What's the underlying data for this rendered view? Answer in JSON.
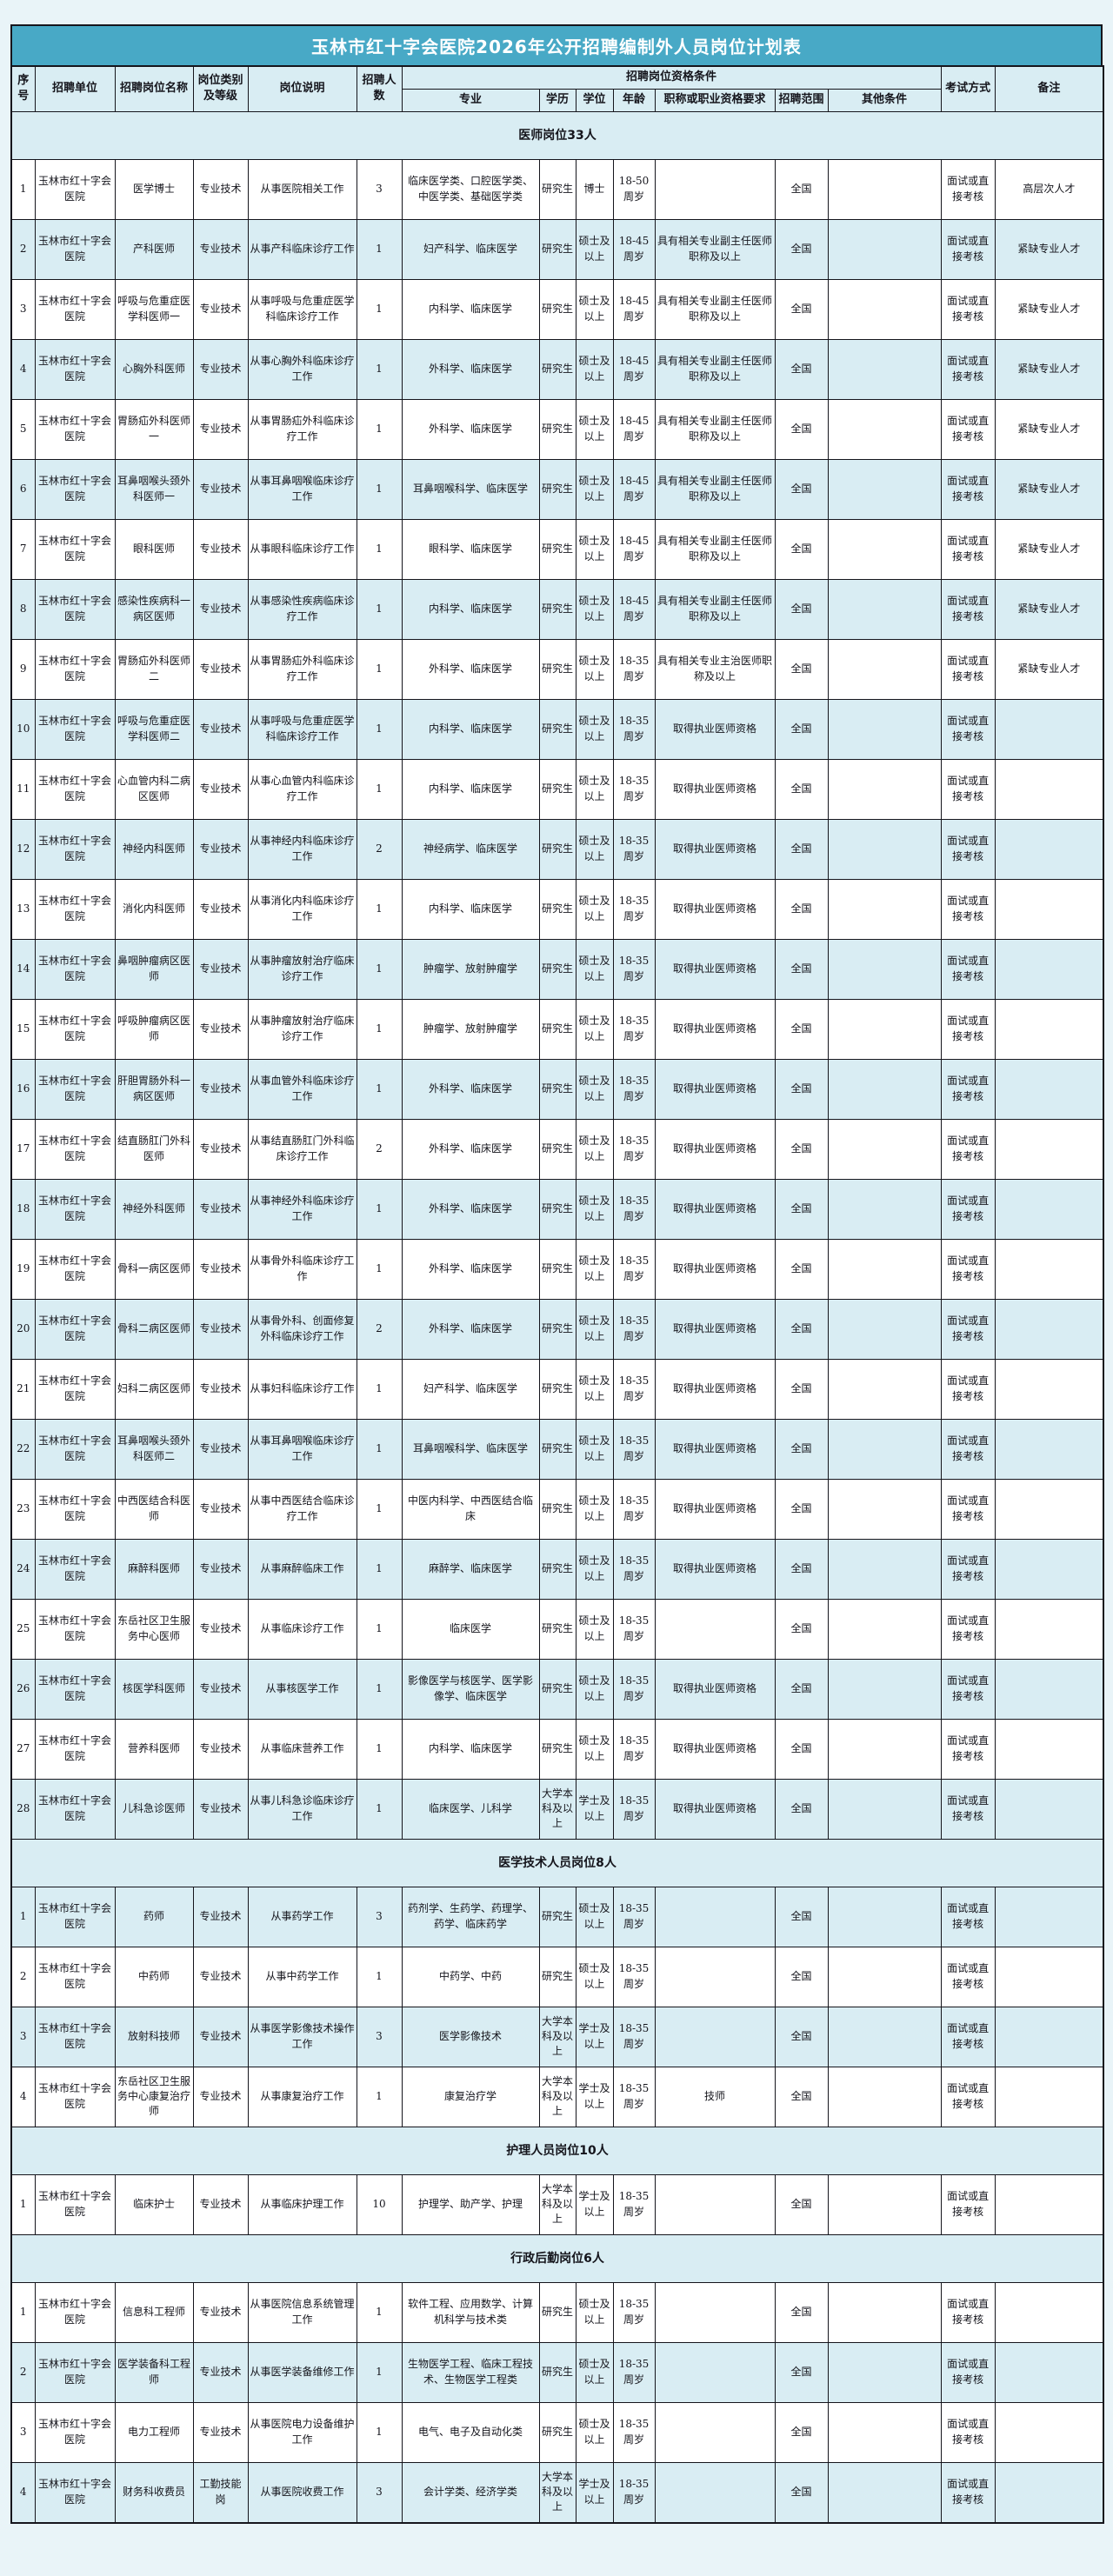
{
  "colors": {
    "title_bg": "#48a9c6",
    "title_text": "#ffffff",
    "band_blue": "#d9edf3",
    "border": "#15151c"
  },
  "title": "玉林市红十字会医院2026年公开招聘编制外人员岗位计划表",
  "header": {
    "no": "序号",
    "unit": "招聘单位",
    "post": "招聘岗位名称",
    "category": "岗位类别及等级",
    "desc": "岗位说明",
    "count": "招聘人数",
    "qual": "招聘岗位资格条件",
    "major": "专业",
    "edu": "学历",
    "degree": "学位",
    "age": "年龄",
    "title_req": "职称或职业资格要求",
    "scope": "招聘范围",
    "other": "其他条件",
    "exam": "考试方式",
    "note": "备注"
  },
  "sections": [
    {
      "heading": "医师岗位33人",
      "zebra_offset": 0,
      "rows": [
        {
          "no": "1",
          "unit": "玉林市红十字会医院",
          "post": "医学博士",
          "category": "专业技术",
          "desc": "从事医院相关工作",
          "count": "3",
          "major": "临床医学类、口腔医学类、中医学类、基础医学类",
          "edu": "研究生",
          "degree": "博士",
          "age": "18-50周岁",
          "title_req": "",
          "scope": "全国",
          "other": "",
          "exam": "面试或直接考核",
          "note": "高层次人才"
        },
        {
          "no": "2",
          "unit": "玉林市红十字会医院",
          "post": "产科医师",
          "category": "专业技术",
          "desc": "从事产科临床诊疗工作",
          "count": "1",
          "major": "妇产科学、临床医学",
          "edu": "研究生",
          "degree": "硕士及以上",
          "age": "18-45周岁",
          "title_req": "具有相关专业副主任医师职称及以上",
          "scope": "全国",
          "other": "",
          "exam": "面试或直接考核",
          "note": "紧缺专业人才"
        },
        {
          "no": "3",
          "unit": "玉林市红十字会医院",
          "post": "呼吸与危重症医学科医师一",
          "category": "专业技术",
          "desc": "从事呼吸与危重症医学科临床诊疗工作",
          "count": "1",
          "major": "内科学、临床医学",
          "edu": "研究生",
          "degree": "硕士及以上",
          "age": "18-45周岁",
          "title_req": "具有相关专业副主任医师职称及以上",
          "scope": "全国",
          "other": "",
          "exam": "面试或直接考核",
          "note": "紧缺专业人才"
        },
        {
          "no": "4",
          "unit": "玉林市红十字会医院",
          "post": "心胸外科医师",
          "category": "专业技术",
          "desc": "从事心胸外科临床诊疗工作",
          "count": "1",
          "major": "外科学、临床医学",
          "edu": "研究生",
          "degree": "硕士及以上",
          "age": "18-45周岁",
          "title_req": "具有相关专业副主任医师职称及以上",
          "scope": "全国",
          "other": "",
          "exam": "面试或直接考核",
          "note": "紧缺专业人才"
        },
        {
          "no": "5",
          "unit": "玉林市红十字会医院",
          "post": "胃肠疝外科医师一",
          "category": "专业技术",
          "desc": "从事胃肠疝外科临床诊疗工作",
          "count": "1",
          "major": "外科学、临床医学",
          "edu": "研究生",
          "degree": "硕士及以上",
          "age": "18-45周岁",
          "title_req": "具有相关专业副主任医师职称及以上",
          "scope": "全国",
          "other": "",
          "exam": "面试或直接考核",
          "note": "紧缺专业人才"
        },
        {
          "no": "6",
          "unit": "玉林市红十字会医院",
          "post": "耳鼻咽喉头颈外科医师一",
          "category": "专业技术",
          "desc": "从事耳鼻咽喉临床诊疗工作",
          "count": "1",
          "major": "耳鼻咽喉科学、临床医学",
          "edu": "研究生",
          "degree": "硕士及以上",
          "age": "18-45周岁",
          "title_req": "具有相关专业副主任医师职称及以上",
          "scope": "全国",
          "other": "",
          "exam": "面试或直接考核",
          "note": "紧缺专业人才"
        },
        {
          "no": "7",
          "unit": "玉林市红十字会医院",
          "post": "眼科医师",
          "category": "专业技术",
          "desc": "从事眼科临床诊疗工作",
          "count": "1",
          "major": "眼科学、临床医学",
          "edu": "研究生",
          "degree": "硕士及以上",
          "age": "18-45周岁",
          "title_req": "具有相关专业副主任医师职称及以上",
          "scope": "全国",
          "other": "",
          "exam": "面试或直接考核",
          "note": "紧缺专业人才"
        },
        {
          "no": "8",
          "unit": "玉林市红十字会医院",
          "post": "感染性疾病科一病区医师",
          "category": "专业技术",
          "desc": "从事感染性疾病临床诊疗工作",
          "count": "1",
          "major": "内科学、临床医学",
          "edu": "研究生",
          "degree": "硕士及以上",
          "age": "18-45周岁",
          "title_req": "具有相关专业副主任医师职称及以上",
          "scope": "全国",
          "other": "",
          "exam": "面试或直接考核",
          "note": "紧缺专业人才"
        },
        {
          "no": "9",
          "unit": "玉林市红十字会医院",
          "post": "胃肠疝外科医师二",
          "category": "专业技术",
          "desc": "从事胃肠疝外科临床诊疗工作",
          "count": "1",
          "major": "外科学、临床医学",
          "edu": "研究生",
          "degree": "硕士及以上",
          "age": "18-35周岁",
          "title_req": "具有相关专业主治医师职称及以上",
          "scope": "全国",
          "other": "",
          "exam": "面试或直接考核",
          "note": "紧缺专业人才"
        },
        {
          "no": "10",
          "unit": "玉林市红十字会医院",
          "post": "呼吸与危重症医学科医师二",
          "category": "专业技术",
          "desc": "从事呼吸与危重症医学科临床诊疗工作",
          "count": "1",
          "major": "内科学、临床医学",
          "edu": "研究生",
          "degree": "硕士及以上",
          "age": "18-35周岁",
          "title_req": "取得执业医师资格",
          "scope": "全国",
          "other": "",
          "exam": "面试或直接考核",
          "note": ""
        },
        {
          "no": "11",
          "unit": "玉林市红十字会医院",
          "post": "心血管内科二病区医师",
          "category": "专业技术",
          "desc": "从事心血管内科临床诊疗工作",
          "count": "1",
          "major": "内科学、临床医学",
          "edu": "研究生",
          "degree": "硕士及以上",
          "age": "18-35周岁",
          "title_req": "取得执业医师资格",
          "scope": "全国",
          "other": "",
          "exam": "面试或直接考核",
          "note": ""
        },
        {
          "no": "12",
          "unit": "玉林市红十字会医院",
          "post": "神经内科医师",
          "category": "专业技术",
          "desc": "从事神经内科临床诊疗工作",
          "count": "2",
          "major": "神经病学、临床医学",
          "edu": "研究生",
          "degree": "硕士及以上",
          "age": "18-35周岁",
          "title_req": "取得执业医师资格",
          "scope": "全国",
          "other": "",
          "exam": "面试或直接考核",
          "note": ""
        },
        {
          "no": "13",
          "unit": "玉林市红十字会医院",
          "post": "消化内科医师",
          "category": "专业技术",
          "desc": "从事消化内科临床诊疗工作",
          "count": "1",
          "major": "内科学、临床医学",
          "edu": "研究生",
          "degree": "硕士及以上",
          "age": "18-35周岁",
          "title_req": "取得执业医师资格",
          "scope": "全国",
          "other": "",
          "exam": "面试或直接考核",
          "note": ""
        },
        {
          "no": "14",
          "unit": "玉林市红十字会医院",
          "post": "鼻咽肿瘤病区医师",
          "category": "专业技术",
          "desc": "从事肿瘤放射治疗临床诊疗工作",
          "count": "1",
          "major": "肿瘤学、放射肿瘤学",
          "edu": "研究生",
          "degree": "硕士及以上",
          "age": "18-35周岁",
          "title_req": "取得执业医师资格",
          "scope": "全国",
          "other": "",
          "exam": "面试或直接考核",
          "note": ""
        },
        {
          "no": "15",
          "unit": "玉林市红十字会医院",
          "post": "呼吸肿瘤病区医师",
          "category": "专业技术",
          "desc": "从事肿瘤放射治疗临床诊疗工作",
          "count": "1",
          "major": "肿瘤学、放射肿瘤学",
          "edu": "研究生",
          "degree": "硕士及以上",
          "age": "18-35周岁",
          "title_req": "取得执业医师资格",
          "scope": "全国",
          "other": "",
          "exam": "面试或直接考核",
          "note": ""
        },
        {
          "no": "16",
          "unit": "玉林市红十字会医院",
          "post": "肝胆胃肠外科一病区医师",
          "category": "专业技术",
          "desc": "从事血管外科临床诊疗工作",
          "count": "1",
          "major": "外科学、临床医学",
          "edu": "研究生",
          "degree": "硕士及以上",
          "age": "18-35周岁",
          "title_req": "取得执业医师资格",
          "scope": "全国",
          "other": "",
          "exam": "面试或直接考核",
          "note": ""
        },
        {
          "no": "17",
          "unit": "玉林市红十字会医院",
          "post": "结直肠肛门外科医师",
          "category": "专业技术",
          "desc": "从事结直肠肛门外科临床诊疗工作",
          "count": "2",
          "major": "外科学、临床医学",
          "edu": "研究生",
          "degree": "硕士及以上",
          "age": "18-35周岁",
          "title_req": "取得执业医师资格",
          "scope": "全国",
          "other": "",
          "exam": "面试或直接考核",
          "note": ""
        },
        {
          "no": "18",
          "unit": "玉林市红十字会医院",
          "post": "神经外科医师",
          "category": "专业技术",
          "desc": "从事神经外科临床诊疗工作",
          "count": "1",
          "major": "外科学、临床医学",
          "edu": "研究生",
          "degree": "硕士及以上",
          "age": "18-35周岁",
          "title_req": "取得执业医师资格",
          "scope": "全国",
          "other": "",
          "exam": "面试或直接考核",
          "note": ""
        },
        {
          "no": "19",
          "unit": "玉林市红十字会医院",
          "post": "骨科一病区医师",
          "category": "专业技术",
          "desc": "从事骨外科临床诊疗工作",
          "count": "1",
          "major": "外科学、临床医学",
          "edu": "研究生",
          "degree": "硕士及以上",
          "age": "18-35周岁",
          "title_req": "取得执业医师资格",
          "scope": "全国",
          "other": "",
          "exam": "面试或直接考核",
          "note": ""
        },
        {
          "no": "20",
          "unit": "玉林市红十字会医院",
          "post": "骨科二病区医师",
          "category": "专业技术",
          "desc": "从事骨外科、创面修复外科临床诊疗工作",
          "count": "2",
          "major": "外科学、临床医学",
          "edu": "研究生",
          "degree": "硕士及以上",
          "age": "18-35周岁",
          "title_req": "取得执业医师资格",
          "scope": "全国",
          "other": "",
          "exam": "面试或直接考核",
          "note": ""
        },
        {
          "no": "21",
          "unit": "玉林市红十字会医院",
          "post": "妇科二病区医师",
          "category": "专业技术",
          "desc": "从事妇科临床诊疗工作",
          "count": "1",
          "major": "妇产科学、临床医学",
          "edu": "研究生",
          "degree": "硕士及以上",
          "age": "18-35周岁",
          "title_req": "取得执业医师资格",
          "scope": "全国",
          "other": "",
          "exam": "面试或直接考核",
          "note": ""
        },
        {
          "no": "22",
          "unit": "玉林市红十字会医院",
          "post": "耳鼻咽喉头颈外科医师二",
          "category": "专业技术",
          "desc": "从事耳鼻咽喉临床诊疗工作",
          "count": "1",
          "major": "耳鼻咽喉科学、临床医学",
          "edu": "研究生",
          "degree": "硕士及以上",
          "age": "18-35周岁",
          "title_req": "取得执业医师资格",
          "scope": "全国",
          "other": "",
          "exam": "面试或直接考核",
          "note": ""
        },
        {
          "no": "23",
          "unit": "玉林市红十字会医院",
          "post": "中西医结合科医师",
          "category": "专业技术",
          "desc": "从事中西医结合临床诊疗工作",
          "count": "1",
          "major": "中医内科学、中西医结合临床",
          "edu": "研究生",
          "degree": "硕士及以上",
          "age": "18-35周岁",
          "title_req": "取得执业医师资格",
          "scope": "全国",
          "other": "",
          "exam": "面试或直接考核",
          "note": ""
        },
        {
          "no": "24",
          "unit": "玉林市红十字会医院",
          "post": "麻醉科医师",
          "category": "专业技术",
          "desc": "从事麻醉临床工作",
          "count": "1",
          "major": "麻醉学、临床医学",
          "edu": "研究生",
          "degree": "硕士及以上",
          "age": "18-35周岁",
          "title_req": "取得执业医师资格",
          "scope": "全国",
          "other": "",
          "exam": "面试或直接考核",
          "note": ""
        },
        {
          "no": "25",
          "unit": "玉林市红十字会医院",
          "post": "东岳社区卫生服务中心医师",
          "category": "专业技术",
          "desc": "从事临床诊疗工作",
          "count": "1",
          "major": "临床医学",
          "edu": "研究生",
          "degree": "硕士及以上",
          "age": "18-35周岁",
          "title_req": "",
          "scope": "全国",
          "other": "",
          "exam": "面试或直接考核",
          "note": ""
        },
        {
          "no": "26",
          "unit": "玉林市红十字会医院",
          "post": "核医学科医师",
          "category": "专业技术",
          "desc": "从事核医学工作",
          "count": "1",
          "major": "影像医学与核医学、医学影像学、临床医学",
          "edu": "研究生",
          "degree": "硕士及以上",
          "age": "18-35周岁",
          "title_req": "取得执业医师资格",
          "scope": "全国",
          "other": "",
          "exam": "面试或直接考核",
          "note": ""
        },
        {
          "no": "27",
          "unit": "玉林市红十字会医院",
          "post": "营养科医师",
          "category": "专业技术",
          "desc": "从事临床营养工作",
          "count": "1",
          "major": "内科学、临床医学",
          "edu": "研究生",
          "degree": "硕士及以上",
          "age": "18-35周岁",
          "title_req": "取得执业医师资格",
          "scope": "全国",
          "other": "",
          "exam": "面试或直接考核",
          "note": ""
        },
        {
          "no": "28",
          "unit": "玉林市红十字会医院",
          "post": "儿科急诊医师",
          "category": "专业技术",
          "desc": "从事儿科急诊临床诊疗工作",
          "count": "1",
          "major": "临床医学、儿科学",
          "edu": "大学本科及以上",
          "degree": "学士及以上",
          "age": "18-35周岁",
          "title_req": "取得执业医师资格",
          "scope": "全国",
          "other": "",
          "exam": "面试或直接考核",
          "note": ""
        }
      ]
    },
    {
      "heading": "医学技术人员岗位8人",
      "zebra_offset": 1,
      "rows": [
        {
          "no": "1",
          "unit": "玉林市红十字会医院",
          "post": "药师",
          "category": "专业技术",
          "desc": "从事药学工作",
          "count": "3",
          "major": "药剂学、生药学、药理学、药学、临床药学",
          "edu": "研究生",
          "degree": "硕士及以上",
          "age": "18-35周岁",
          "title_req": "",
          "scope": "全国",
          "other": "",
          "exam": "面试或直接考核",
          "note": ""
        },
        {
          "no": "2",
          "unit": "玉林市红十字会医院",
          "post": "中药师",
          "category": "专业技术",
          "desc": "从事中药学工作",
          "count": "1",
          "major": "中药学、中药",
          "edu": "研究生",
          "degree": "硕士及以上",
          "age": "18-35周岁",
          "title_req": "",
          "scope": "全国",
          "other": "",
          "exam": "面试或直接考核",
          "note": ""
        },
        {
          "no": "3",
          "unit": "玉林市红十字会医院",
          "post": "放射科技师",
          "category": "专业技术",
          "desc": "从事医学影像技术操作工作",
          "count": "3",
          "major": "医学影像技术",
          "edu": "大学本科及以上",
          "degree": "学士及以上",
          "age": "18-35周岁",
          "title_req": "",
          "scope": "全国",
          "other": "",
          "exam": "面试或直接考核",
          "note": ""
        },
        {
          "no": "4",
          "unit": "玉林市红十字会医院",
          "post": "东岳社区卫生服务中心康复治疗师",
          "category": "专业技术",
          "desc": "从事康复治疗工作",
          "count": "1",
          "major": "康复治疗学",
          "edu": "大学本科及以上",
          "degree": "学士及以上",
          "age": "18-35周岁",
          "title_req": "技师",
          "scope": "全国",
          "other": "",
          "exam": "面试或直接考核",
          "note": ""
        }
      ]
    },
    {
      "heading": "护理人员岗位10人",
      "zebra_offset": 0,
      "rows": [
        {
          "no": "1",
          "unit": "玉林市红十字会医院",
          "post": "临床护士",
          "category": "专业技术",
          "desc": "从事临床护理工作",
          "count": "10",
          "major": "护理学、助产学、护理",
          "edu": "大学本科及以上",
          "degree": "学士及以上",
          "age": "18-35周岁",
          "title_req": "",
          "scope": "全国",
          "other": "",
          "exam": "面试或直接考核",
          "note": ""
        }
      ]
    },
    {
      "heading": "行政后勤岗位6人",
      "zebra_offset": 0,
      "rows": [
        {
          "no": "1",
          "unit": "玉林市红十字会医院",
          "post": "信息科工程师",
          "category": "专业技术",
          "desc": "从事医院信息系统管理工作",
          "count": "1",
          "major": "软件工程、应用数学、计算机科学与技术类",
          "edu": "研究生",
          "degree": "硕士及以上",
          "age": "18-35周岁",
          "title_req": "",
          "scope": "全国",
          "other": "",
          "exam": "面试或直接考核",
          "note": ""
        },
        {
          "no": "2",
          "unit": "玉林市红十字会医院",
          "post": "医学装备科工程师",
          "category": "专业技术",
          "desc": "从事医学装备维修工作",
          "count": "1",
          "major": "生物医学工程、临床工程技术、生物医学工程类",
          "edu": "研究生",
          "degree": "硕士及以上",
          "age": "18-35周岁",
          "title_req": "",
          "scope": "全国",
          "other": "",
          "exam": "面试或直接考核",
          "note": ""
        },
        {
          "no": "3",
          "unit": "玉林市红十字会医院",
          "post": "电力工程师",
          "category": "专业技术",
          "desc": "从事医院电力设备维护工作",
          "count": "1",
          "major": "电气、电子及自动化类",
          "edu": "研究生",
          "degree": "硕士及以上",
          "age": "18-35周岁",
          "title_req": "",
          "scope": "全国",
          "other": "",
          "exam": "面试或直接考核",
          "note": ""
        },
        {
          "no": "4",
          "unit": "玉林市红十字会医院",
          "post": "财务科收费员",
          "category": "工勤技能岗",
          "desc": "从事医院收费工作",
          "count": "3",
          "major": "会计学类、经济学类",
          "edu": "大学本科及以上",
          "degree": "学士及以上",
          "age": "18-35周岁",
          "title_req": "",
          "scope": "全国",
          "other": "",
          "exam": "面试或直接考核",
          "note": ""
        }
      ]
    }
  ]
}
